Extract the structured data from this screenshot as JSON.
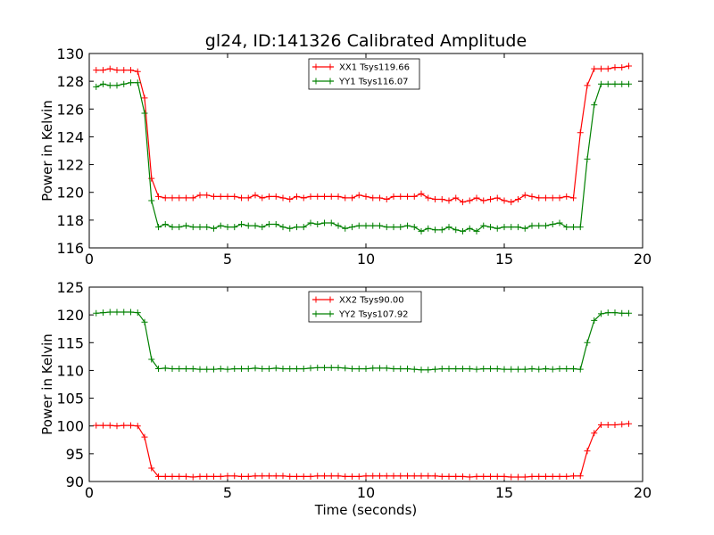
{
  "chart_data": [
    {
      "type": "line",
      "title": "gl24, ID:141326 Calibrated Amplitude",
      "xlabel": "",
      "ylabel": "Power in Kelvin",
      "xlim": [
        0,
        20
      ],
      "ylim": [
        116,
        130
      ],
      "xticks": [
        0,
        5,
        10,
        15,
        20
      ],
      "yticks": [
        116,
        118,
        120,
        122,
        124,
        126,
        128,
        130
      ],
      "legend_position": "upper center",
      "x": [
        0.25,
        0.5,
        0.75,
        1.0,
        1.25,
        1.5,
        1.75,
        2.0,
        2.25,
        2.5,
        2.75,
        3.0,
        3.25,
        3.5,
        3.75,
        4.0,
        4.25,
        4.5,
        4.75,
        5.0,
        5.25,
        5.5,
        5.75,
        6.0,
        6.25,
        6.5,
        6.75,
        7.0,
        7.25,
        7.5,
        7.75,
        8.0,
        8.25,
        8.5,
        8.75,
        9.0,
        9.25,
        9.5,
        9.75,
        10.0,
        10.25,
        10.5,
        10.75,
        11.0,
        11.25,
        11.5,
        11.75,
        12.0,
        12.25,
        12.5,
        12.75,
        13.0,
        13.25,
        13.5,
        13.75,
        14.0,
        14.25,
        14.5,
        14.75,
        15.0,
        15.25,
        15.5,
        15.75,
        16.0,
        16.25,
        16.5,
        16.75,
        17.0,
        17.25,
        17.5,
        17.75,
        18.0,
        18.25,
        18.5,
        18.75,
        19.0,
        19.25,
        19.5
      ],
      "series": [
        {
          "name": "XX1 Tsys119.66",
          "color": "#ff0000",
          "values": [
            128.8,
            128.8,
            128.9,
            128.8,
            128.8,
            128.8,
            128.7,
            126.8,
            121.0,
            119.7,
            119.6,
            119.6,
            119.6,
            119.6,
            119.6,
            119.8,
            119.8,
            119.7,
            119.7,
            119.7,
            119.7,
            119.6,
            119.6,
            119.8,
            119.6,
            119.7,
            119.7,
            119.6,
            119.5,
            119.7,
            119.6,
            119.7,
            119.7,
            119.7,
            119.7,
            119.7,
            119.6,
            119.6,
            119.8,
            119.7,
            119.6,
            119.6,
            119.5,
            119.7,
            119.7,
            119.7,
            119.7,
            119.9,
            119.6,
            119.5,
            119.5,
            119.4,
            119.6,
            119.3,
            119.4,
            119.6,
            119.4,
            119.5,
            119.6,
            119.4,
            119.3,
            119.5,
            119.8,
            119.7,
            119.6,
            119.6,
            119.6,
            119.6,
            119.7,
            119.6,
            124.3,
            127.7,
            128.9,
            128.9,
            128.9,
            129.0,
            129.0,
            129.1
          ]
        },
        {
          "name": "YY1 Tsys116.07",
          "color": "#008000",
          "values": [
            127.6,
            127.8,
            127.7,
            127.7,
            127.8,
            127.9,
            127.9,
            125.7,
            119.4,
            117.5,
            117.7,
            117.5,
            117.5,
            117.6,
            117.5,
            117.5,
            117.5,
            117.4,
            117.6,
            117.5,
            117.5,
            117.7,
            117.6,
            117.6,
            117.5,
            117.7,
            117.7,
            117.5,
            117.4,
            117.5,
            117.5,
            117.8,
            117.7,
            117.8,
            117.8,
            117.6,
            117.4,
            117.5,
            117.6,
            117.6,
            117.6,
            117.6,
            117.5,
            117.5,
            117.5,
            117.6,
            117.5,
            117.2,
            117.4,
            117.3,
            117.3,
            117.5,
            117.3,
            117.2,
            117.4,
            117.2,
            117.6,
            117.5,
            117.4,
            117.5,
            117.5,
            117.5,
            117.4,
            117.6,
            117.6,
            117.6,
            117.7,
            117.8,
            117.5,
            117.5,
            117.5,
            122.4,
            126.3,
            127.8,
            127.8,
            127.8,
            127.8,
            127.8
          ]
        }
      ]
    },
    {
      "type": "line",
      "title": "",
      "xlabel": "Time (seconds)",
      "ylabel": "Power in Kelvin",
      "xlim": [
        0,
        20
      ],
      "ylim": [
        90,
        125
      ],
      "xticks": [
        0,
        5,
        10,
        15,
        20
      ],
      "yticks": [
        90,
        95,
        100,
        105,
        110,
        115,
        120,
        125
      ],
      "legend_position": "upper center",
      "x": [
        0.25,
        0.5,
        0.75,
        1.0,
        1.25,
        1.5,
        1.75,
        2.0,
        2.25,
        2.5,
        2.75,
        3.0,
        3.25,
        3.5,
        3.75,
        4.0,
        4.25,
        4.5,
        4.75,
        5.0,
        5.25,
        5.5,
        5.75,
        6.0,
        6.25,
        6.5,
        6.75,
        7.0,
        7.25,
        7.5,
        7.75,
        8.0,
        8.25,
        8.5,
        8.75,
        9.0,
        9.25,
        9.5,
        9.75,
        10.0,
        10.25,
        10.5,
        10.75,
        11.0,
        11.25,
        11.5,
        11.75,
        12.0,
        12.25,
        12.5,
        12.75,
        13.0,
        13.25,
        13.5,
        13.75,
        14.0,
        14.25,
        14.5,
        14.75,
        15.0,
        15.25,
        15.5,
        15.75,
        16.0,
        16.25,
        16.5,
        16.75,
        17.0,
        17.25,
        17.5,
        17.75,
        18.0,
        18.25,
        18.5,
        18.75,
        19.0,
        19.25,
        19.5
      ],
      "series": [
        {
          "name": "XX2 Tsys90.00",
          "color": "#ff0000",
          "values": [
            100.1,
            100.1,
            100.1,
            100.0,
            100.1,
            100.1,
            100.0,
            98.0,
            92.4,
            90.9,
            90.9,
            90.9,
            90.9,
            90.9,
            90.8,
            90.9,
            90.9,
            90.9,
            90.9,
            91.0,
            91.0,
            90.9,
            90.9,
            91.0,
            91.0,
            91.0,
            91.0,
            91.0,
            90.9,
            90.9,
            90.9,
            90.9,
            91.0,
            91.0,
            91.0,
            91.0,
            90.9,
            90.9,
            90.9,
            91.0,
            91.0,
            91.0,
            91.0,
            91.0,
            91.0,
            91.0,
            91.0,
            91.0,
            91.0,
            91.0,
            90.9,
            90.9,
            90.9,
            90.9,
            90.8,
            90.9,
            90.9,
            90.9,
            90.9,
            90.9,
            90.8,
            90.8,
            90.8,
            90.9,
            90.9,
            90.9,
            90.9,
            90.9,
            90.9,
            91.0,
            91.0,
            95.5,
            98.7,
            100.2,
            100.2,
            100.2,
            100.3,
            100.4
          ]
        },
        {
          "name": "YY2 Tsys107.92",
          "color": "#008000",
          "values": [
            120.3,
            120.4,
            120.5,
            120.5,
            120.5,
            120.5,
            120.4,
            118.7,
            112.0,
            110.3,
            110.4,
            110.3,
            110.3,
            110.3,
            110.3,
            110.2,
            110.2,
            110.2,
            110.3,
            110.2,
            110.3,
            110.3,
            110.3,
            110.4,
            110.3,
            110.3,
            110.4,
            110.3,
            110.3,
            110.3,
            110.3,
            110.4,
            110.5,
            110.5,
            110.5,
            110.5,
            110.4,
            110.3,
            110.3,
            110.3,
            110.4,
            110.4,
            110.4,
            110.3,
            110.3,
            110.3,
            110.2,
            110.1,
            110.1,
            110.2,
            110.3,
            110.3,
            110.3,
            110.3,
            110.3,
            110.2,
            110.3,
            110.3,
            110.3,
            110.2,
            110.2,
            110.2,
            110.2,
            110.3,
            110.2,
            110.3,
            110.2,
            110.3,
            110.3,
            110.3,
            110.2,
            115.0,
            119.0,
            120.2,
            120.4,
            120.4,
            120.3,
            120.3
          ]
        }
      ]
    }
  ]
}
